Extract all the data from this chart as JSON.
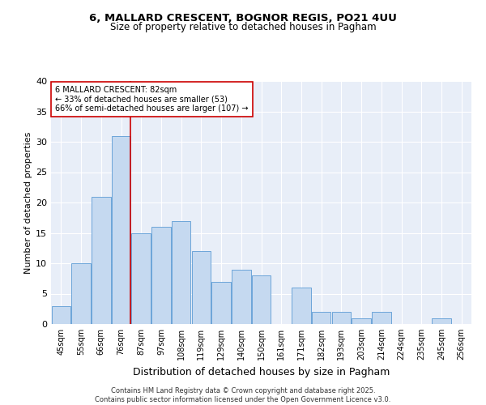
{
  "title_line1": "6, MALLARD CRESCENT, BOGNOR REGIS, PO21 4UU",
  "title_line2": "Size of property relative to detached houses in Pagham",
  "xlabel": "Distribution of detached houses by size in Pagham",
  "ylabel": "Number of detached properties",
  "categories": [
    "45sqm",
    "55sqm",
    "66sqm",
    "76sqm",
    "87sqm",
    "97sqm",
    "108sqm",
    "119sqm",
    "129sqm",
    "140sqm",
    "150sqm",
    "161sqm",
    "171sqm",
    "182sqm",
    "193sqm",
    "203sqm",
    "214sqm",
    "224sqm",
    "235sqm",
    "245sqm",
    "256sqm"
  ],
  "values": [
    3,
    10,
    21,
    31,
    15,
    16,
    17,
    12,
    7,
    9,
    8,
    0,
    6,
    2,
    2,
    1,
    2,
    0,
    0,
    1,
    0
  ],
  "bar_color": "#c5d9f0",
  "bar_edge_color": "#5b9bd5",
  "vline_x_index": 3,
  "vline_color": "#cc0000",
  "annotation_text": "6 MALLARD CRESCENT: 82sqm\n← 33% of detached houses are smaller (53)\n66% of semi-detached houses are larger (107) →",
  "annotation_box_color": "#cc0000",
  "annotation_text_color": "#000000",
  "ylim": [
    0,
    40
  ],
  "yticks": [
    0,
    5,
    10,
    15,
    20,
    25,
    30,
    35,
    40
  ],
  "background_color": "#e8eef8",
  "grid_color": "#ffffff",
  "footer_text": "Contains HM Land Registry data © Crown copyright and database right 2025.\nContains public sector information licensed under the Open Government Licence v3.0.",
  "title_fontsize": 9.5,
  "subtitle_fontsize": 8.5,
  "axis_label_fontsize": 8,
  "tick_fontsize": 7,
  "annotation_fontsize": 7,
  "footer_fontsize": 6
}
